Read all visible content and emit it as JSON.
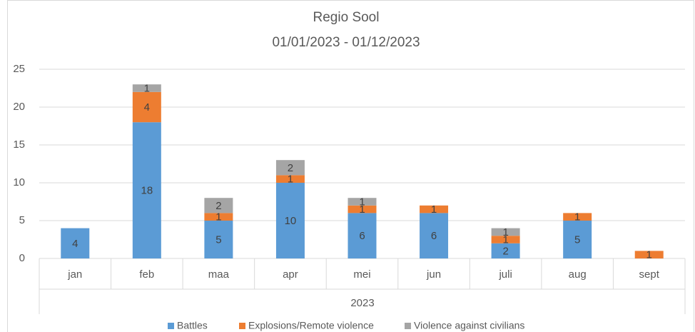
{
  "chart_data": {
    "type": "stacked_bar",
    "title": "Regio Sool",
    "subtitle": "01/01/2023 - 01/12/2023",
    "group_label": "2023",
    "categories": [
      "jan",
      "feb",
      "maa",
      "apr",
      "mei",
      "jun",
      "juli",
      "aug",
      "sept"
    ],
    "series": [
      {
        "name": "Battles",
        "color": "#5b9bd5",
        "values": [
          4,
          18,
          5,
          10,
          6,
          6,
          2,
          5,
          null
        ]
      },
      {
        "name": "Explosions/Remote violence",
        "color": "#ed7d31",
        "values": [
          null,
          4,
          1,
          1,
          1,
          1,
          1,
          1,
          1
        ]
      },
      {
        "name": "Violence against civilians",
        "color": "#a5a5a5",
        "values": [
          null,
          1,
          2,
          2,
          1,
          null,
          1,
          null,
          null
        ]
      }
    ],
    "ylim": [
      0,
      25
    ],
    "yticks": [
      0,
      5,
      10,
      15,
      20,
      25
    ],
    "grid": true,
    "legend": "bottom"
  }
}
